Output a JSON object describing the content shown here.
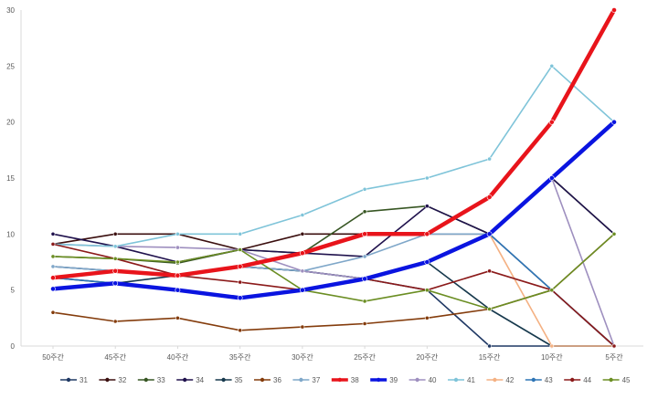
{
  "chart_data": {
    "type": "line",
    "categories": [
      "50주간",
      "45주간",
      "40주간",
      "35주간",
      "30주간",
      "25주간",
      "20주간",
      "15주간",
      "10주간",
      "5주간"
    ],
    "ylim": [
      0,
      30
    ],
    "yticks": [
      "0",
      "5",
      "10",
      "15",
      "20",
      "25",
      "30"
    ],
    "grid": false,
    "legend_position": "bottom",
    "series": [
      {
        "name": "31",
        "color": "#1f3864",
        "bold": false,
        "values": [
          7.1,
          6.7,
          6.3,
          7.1,
          6.7,
          6.0,
          5.0,
          0,
          0,
          0
        ]
      },
      {
        "name": "32",
        "color": "#3b0f0f",
        "bold": false,
        "values": [
          9.1,
          10,
          10,
          8.6,
          10,
          10,
          10,
          10,
          5,
          0
        ]
      },
      {
        "name": "33",
        "color": "#375623",
        "bold": false,
        "values": [
          8.0,
          7.8,
          7.4,
          8.6,
          8.3,
          12.0,
          12.5,
          10,
          15,
          10
        ]
      },
      {
        "name": "34",
        "color": "#20124d",
        "bold": false,
        "values": [
          10,
          8.9,
          7.5,
          8.6,
          8.3,
          8.0,
          12.5,
          10,
          15,
          10
        ]
      },
      {
        "name": "35",
        "color": "#17394d",
        "bold": false,
        "values": [
          6.1,
          5.6,
          6.3,
          7.1,
          6.7,
          6.0,
          7.5,
          3.3,
          0,
          0
        ]
      },
      {
        "name": "36",
        "color": "#843c0c",
        "bold": false,
        "values": [
          3.0,
          2.2,
          2.5,
          1.4,
          1.7,
          2.0,
          2.5,
          3.3,
          5,
          10
        ]
      },
      {
        "name": "37",
        "color": "#7fa7c9",
        "bold": false,
        "values": [
          7.1,
          6.7,
          6.3,
          7.1,
          6.7,
          8.0,
          10,
          10,
          5,
          0
        ]
      },
      {
        "name": "38",
        "color": "#e8141b",
        "bold": true,
        "values": [
          6.1,
          6.7,
          6.3,
          7.1,
          8.3,
          10,
          10,
          13.3,
          20,
          30
        ]
      },
      {
        "name": "39",
        "color": "#0a14e0",
        "bold": true,
        "values": [
          5.1,
          5.6,
          5.0,
          4.3,
          5.0,
          6.0,
          7.5,
          10,
          15,
          20
        ]
      },
      {
        "name": "40",
        "color": "#9e8fbf",
        "bold": false,
        "values": [
          9.1,
          8.9,
          8.8,
          8.6,
          6.7,
          6.0,
          7.5,
          10,
          15,
          0
        ]
      },
      {
        "name": "41",
        "color": "#7fc4d9",
        "bold": false,
        "values": [
          9.1,
          8.9,
          10,
          10,
          11.7,
          14,
          15,
          16.7,
          25,
          20
        ]
      },
      {
        "name": "42",
        "color": "#f4b183",
        "bold": false,
        "values": [
          5.1,
          5.6,
          5.0,
          4.3,
          5.0,
          6.0,
          7.5,
          10,
          0,
          0
        ]
      },
      {
        "name": "43",
        "color": "#2e75b6",
        "bold": false,
        "values": [
          6.1,
          5.6,
          5.0,
          4.3,
          5.0,
          6.0,
          7.5,
          10,
          5,
          0
        ]
      },
      {
        "name": "44",
        "color": "#8b1a1a",
        "bold": false,
        "values": [
          9.1,
          7.8,
          6.3,
          5.7,
          5.0,
          6.0,
          5.0,
          6.7,
          5,
          0
        ]
      },
      {
        "name": "45",
        "color": "#6b8e23",
        "bold": false,
        "values": [
          8.0,
          7.8,
          7.5,
          8.6,
          5.0,
          4.0,
          5.0,
          3.3,
          5,
          10
        ]
      }
    ]
  }
}
